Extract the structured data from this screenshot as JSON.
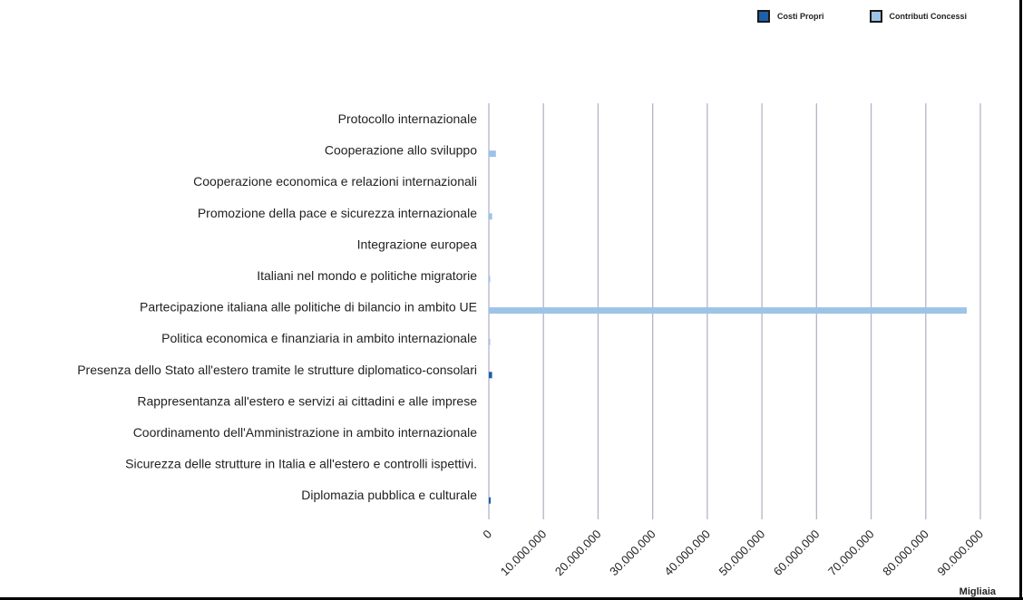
{
  "chart_data": {
    "type": "bar",
    "orientation": "horizontal",
    "categories": [
      "Protocollo internazionale",
      "Cooperazione allo sviluppo",
      "Cooperazione economica e relazioni internazionali",
      "Promozione della pace e sicurezza internazionale",
      "Integrazione europea",
      "Italiani nel mondo e politiche migratorie",
      "Partecipazione italiana alle politiche di bilancio in ambito UE",
      "Politica economica e finanziaria in ambito internazionale",
      "Presenza dello Stato all'estero tramite le strutture diplomatico-consolari",
      "Rappresentanza all'estero e servizi ai cittadini e alle imprese",
      "Coordinamento dell'Amministrazione in ambito internazionale",
      "Sicurezza delle strutture in Italia e all'estero e controlli ispettivi.",
      "Diplomazia pubblica e culturale"
    ],
    "series": [
      {
        "name": "Costi Propri",
        "color": "#1f5fa8",
        "values": [
          0,
          0,
          0,
          0,
          0,
          0,
          0,
          0,
          600000,
          0,
          0,
          0,
          350000
        ]
      },
      {
        "name": "Contributi Concessi",
        "color": "#9dc3e6",
        "values": [
          0,
          1300000,
          0,
          600000,
          0,
          250000,
          87500000,
          250000,
          0,
          0,
          0,
          0,
          0
        ]
      }
    ],
    "xlim": [
      0,
      90000000
    ],
    "tick_values": [
      0,
      10000000,
      20000000,
      30000000,
      40000000,
      50000000,
      60000000,
      70000000,
      80000000,
      90000000
    ],
    "tick_labels": [
      "0",
      "10.000.000",
      "20.000.000",
      "30.000.000",
      "40.000.000",
      "50.000.000",
      "60.000.000",
      "70.000.000",
      "80.000.000",
      "90.000.000"
    ],
    "unit_label": "Migliaia",
    "grid": true,
    "legend_position": "top-right",
    "grid_color": "#b4b4cc"
  }
}
